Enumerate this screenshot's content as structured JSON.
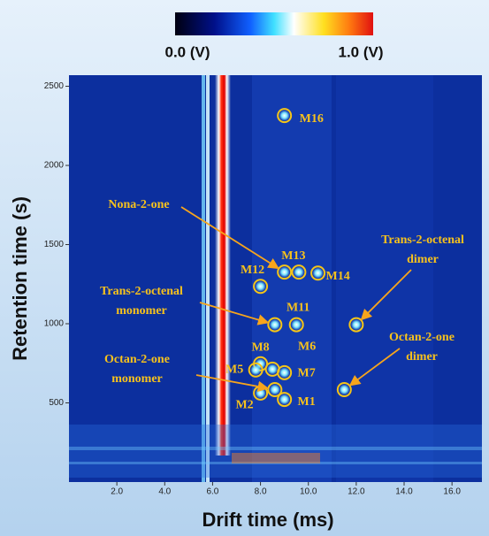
{
  "chart_data": {
    "type": "scatter",
    "xlabel": "Drift time (ms)",
    "ylabel": "Retention time (s)",
    "xlim": [
      0,
      17.25
    ],
    "ylim": [
      0,
      2570
    ],
    "xticks": [
      {
        "value": 2,
        "label": "2.0"
      },
      {
        "value": 4,
        "label": "4.0"
      },
      {
        "value": 6,
        "label": "6.0"
      },
      {
        "value": 8,
        "label": "8.0"
      },
      {
        "value": 10,
        "label": "10.0"
      },
      {
        "value": 12,
        "label": "12.0"
      },
      {
        "value": 14,
        "label": "14.0"
      },
      {
        "value": 16,
        "label": "16.0"
      }
    ],
    "yticks": [
      500,
      1000,
      1500,
      2000,
      2500
    ],
    "colorbar": {
      "labels": [
        "0.0 (V)",
        "1.0 (V)"
      ]
    },
    "marker_color": "#f5c518",
    "points": [
      {
        "label": "M16",
        "x": 9.0,
        "y": 2315
      },
      {
        "x": 9.0,
        "y": 1326
      },
      {
        "label": "M13",
        "x": 9.6,
        "y": 1326
      },
      {
        "label": "M14",
        "x": 10.4,
        "y": 1320
      },
      {
        "label": "M12",
        "x": 8.0,
        "y": 1236
      },
      {
        "x": 8.6,
        "y": 994
      },
      {
        "label": "M11",
        "x": 9.5,
        "y": 994
      },
      {
        "x": 12.0,
        "y": 994
      },
      {
        "label": "M8",
        "x": 8.0,
        "y": 747
      },
      {
        "label": "M6",
        "x": 8.5,
        "y": 713
      },
      {
        "label": "M5",
        "x": 7.8,
        "y": 708
      },
      {
        "label": "M7",
        "x": 9.0,
        "y": 691
      },
      {
        "label": "M2",
        "x": 8.0,
        "y": 562
      },
      {
        "x": 8.6,
        "y": 584
      },
      {
        "label": "M1",
        "x": 9.0,
        "y": 522
      },
      {
        "x": 11.5,
        "y": 584
      }
    ],
    "callouts": [
      {
        "text": [
          "Nona-2-one"
        ],
        "x": 9.0,
        "y": 1326
      },
      {
        "text": [
          "Trans-2-octenal",
          "monomer"
        ],
        "x": 8.6,
        "y": 994
      },
      {
        "text": [
          "Trans-2-octenal",
          "dimer"
        ],
        "x": 12.0,
        "y": 994
      },
      {
        "text": [
          "Octan-2-one",
          "monomer"
        ],
        "x": 8.6,
        "y": 584
      },
      {
        "text": [
          "Octan-2-one",
          "dimer"
        ],
        "x": 11.5,
        "y": 584
      }
    ]
  }
}
